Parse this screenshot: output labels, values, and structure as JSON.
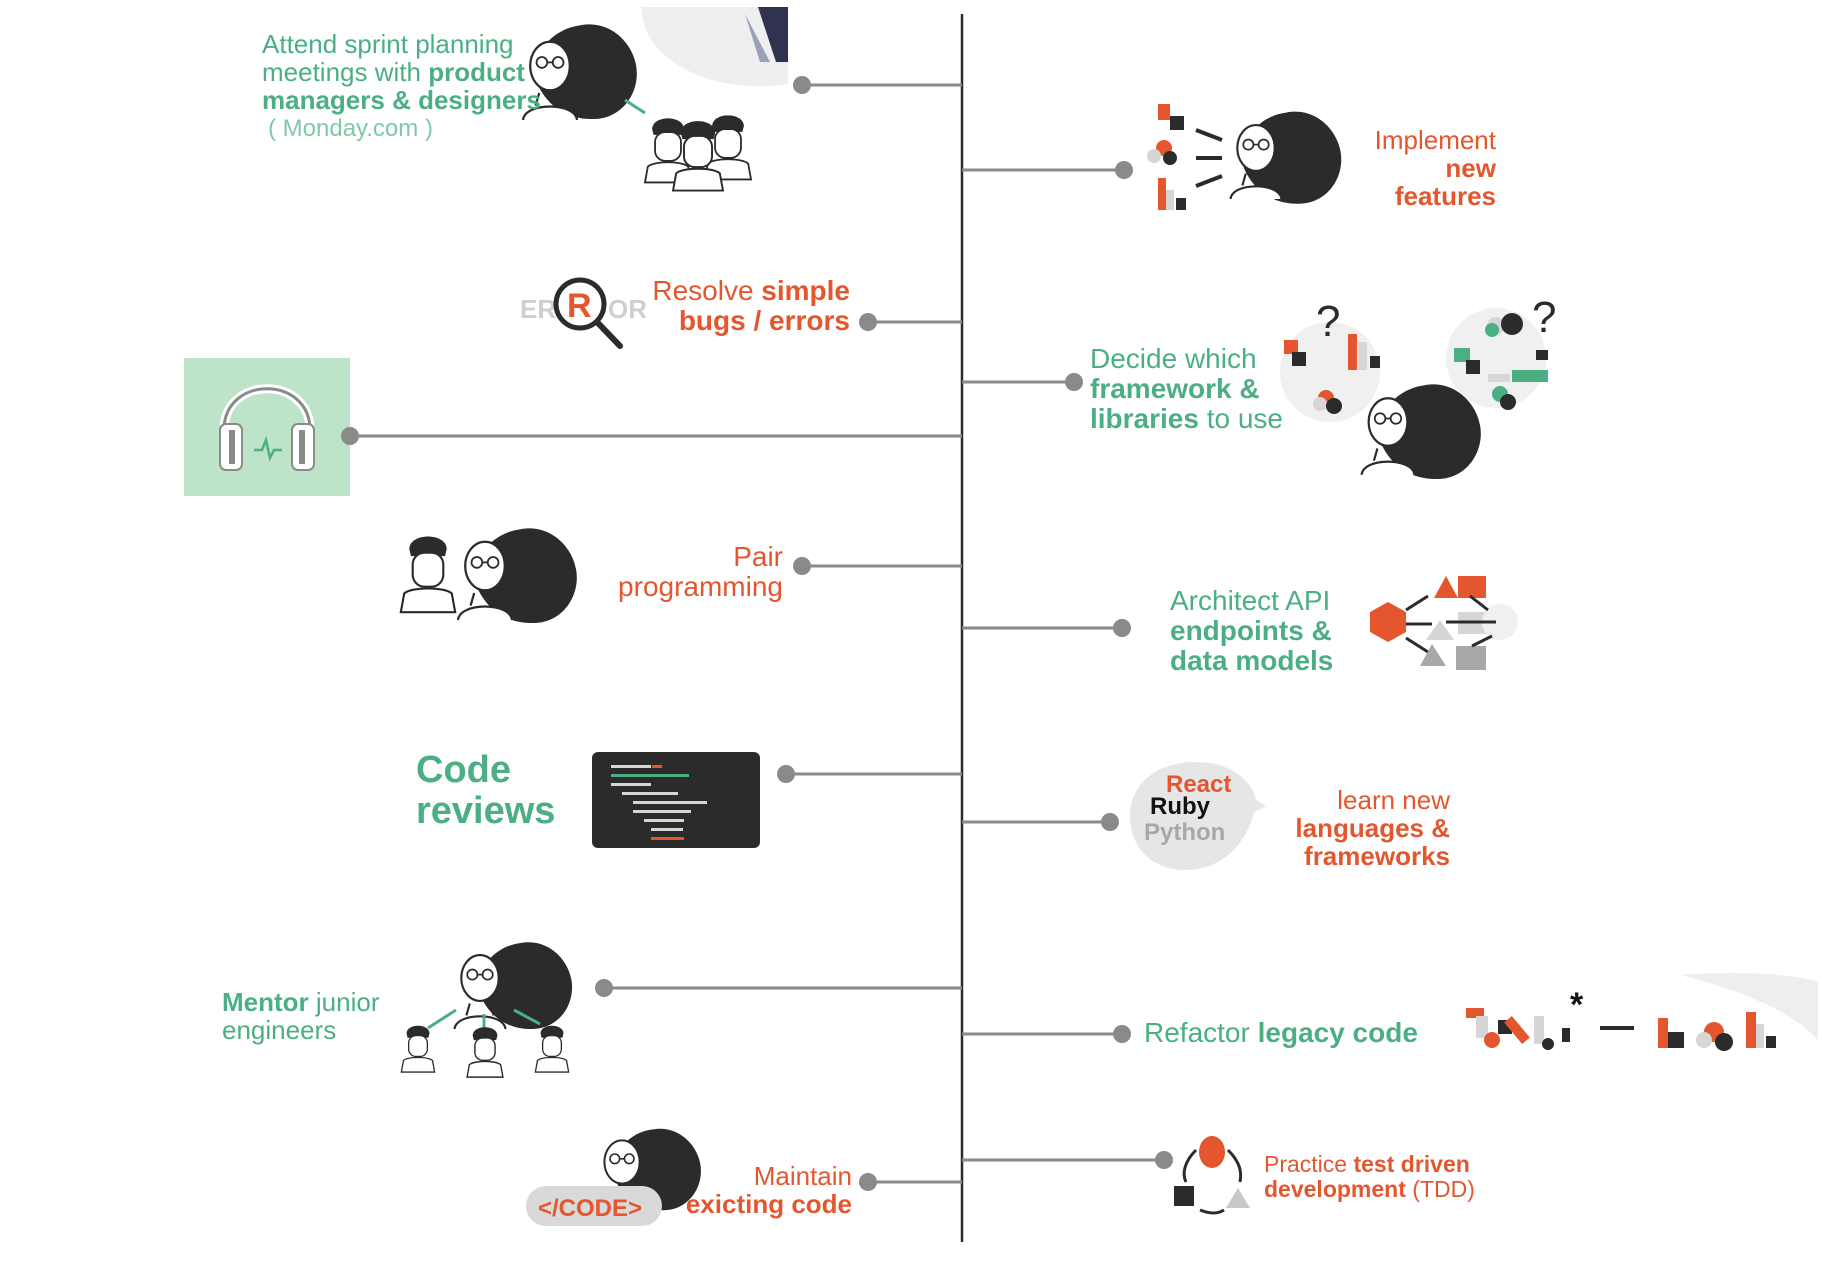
{
  "colors": {
    "green": "#4caf84",
    "orange": "#e4572e",
    "gray_line": "#8a8a8a",
    "dark": "#2b2b2b",
    "light_gray": "#d6d6d6",
    "mint_tile": "#bde3c8"
  },
  "left_tasks": {
    "sprint": {
      "line1": "Attend sprint planning",
      "line2_plain": "meetings with ",
      "line2_bold": "product",
      "line3_bold": "managers & designers",
      "note": "( Monday.com )"
    },
    "bugs": {
      "line1_plain": "Resolve ",
      "line1_bold": "simple",
      "line2_bold": "bugs / errors",
      "magnifier_letters_left": "ER",
      "magnifier_letter": "R",
      "magnifier_letters_right": "OR"
    },
    "podcast": {
      "icon": "headphones-icon"
    },
    "pair": {
      "line1": "Pair",
      "line2": "programming"
    },
    "code_reviews": {
      "line1": "Code",
      "line2": "reviews"
    },
    "mentor": {
      "bold": "Mentor",
      "line1_plain": " junior",
      "line2": "engineers"
    },
    "maintain": {
      "line1": "Maintain",
      "line2": "exicting code",
      "badge": "</CODE>"
    }
  },
  "right_tasks": {
    "implement": {
      "line1": "Implement",
      "line2": "new",
      "line3": "features"
    },
    "framework": {
      "line1": "Decide which",
      "line2_bold": "framework &",
      "line3_bold": "libraries",
      "line3_plain": " to use",
      "q1": "?",
      "q2": "?"
    },
    "api": {
      "line1": "Architect API",
      "line2": "endpoints &",
      "line3": "data models"
    },
    "learn": {
      "line1": "learn new",
      "line2": "languages &",
      "line3": "frameworks",
      "bubble_line1": "React",
      "bubble_line2": "Ruby",
      "bubble_line3": "Python"
    },
    "refactor": {
      "plain": "Refactor ",
      "bold": "legacy code",
      "asterisk": "*"
    },
    "tdd": {
      "line1_plain": "Practice ",
      "line1_bold": "test driven",
      "line2_bold": "development",
      "line2_plain": " (TDD)"
    }
  }
}
